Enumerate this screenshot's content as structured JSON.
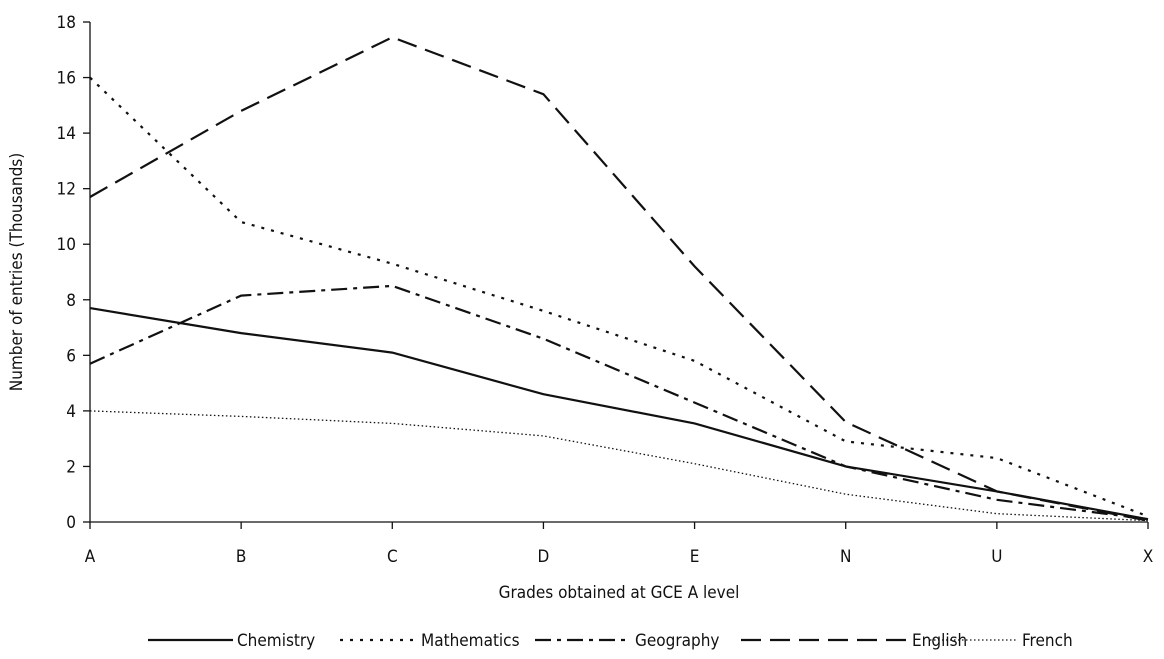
{
  "chart_data": {
    "type": "line",
    "xlabel": "Grades obtained at GCE A level",
    "ylabel": "Number of entries (Thousands)",
    "categories": [
      "A",
      "B",
      "C",
      "D",
      "E",
      "N",
      "U",
      "X"
    ],
    "ylim": [
      0,
      18
    ],
    "yticks": [
      "0",
      "2",
      "4",
      "6",
      "8",
      "10",
      "12",
      "14",
      "16",
      "18"
    ],
    "grid": false,
    "legend_position": "bottom",
    "series": [
      {
        "name": "Chemistry",
        "dash": "solid",
        "values": [
          7.7,
          6.8,
          6.1,
          4.6,
          3.55,
          2.0,
          1.1,
          0.1
        ]
      },
      {
        "name": "Mathematics",
        "dash": "dotted",
        "values": [
          16.0,
          10.8,
          9.3,
          7.6,
          5.8,
          2.9,
          2.3,
          0.2
        ]
      },
      {
        "name": "Geography",
        "dash": "dash-dot",
        "values": [
          5.7,
          8.15,
          8.5,
          6.6,
          4.3,
          2.0,
          0.8,
          0.1
        ]
      },
      {
        "name": "English",
        "dash": "long-dash",
        "values": [
          11.7,
          14.8,
          17.45,
          15.4,
          9.2,
          3.6,
          1.1,
          0.05
        ]
      },
      {
        "name": "French",
        "dash": "fine-dotted",
        "values": [
          4.0,
          3.8,
          3.55,
          3.1,
          2.1,
          1.0,
          0.3,
          0.05
        ]
      }
    ]
  }
}
